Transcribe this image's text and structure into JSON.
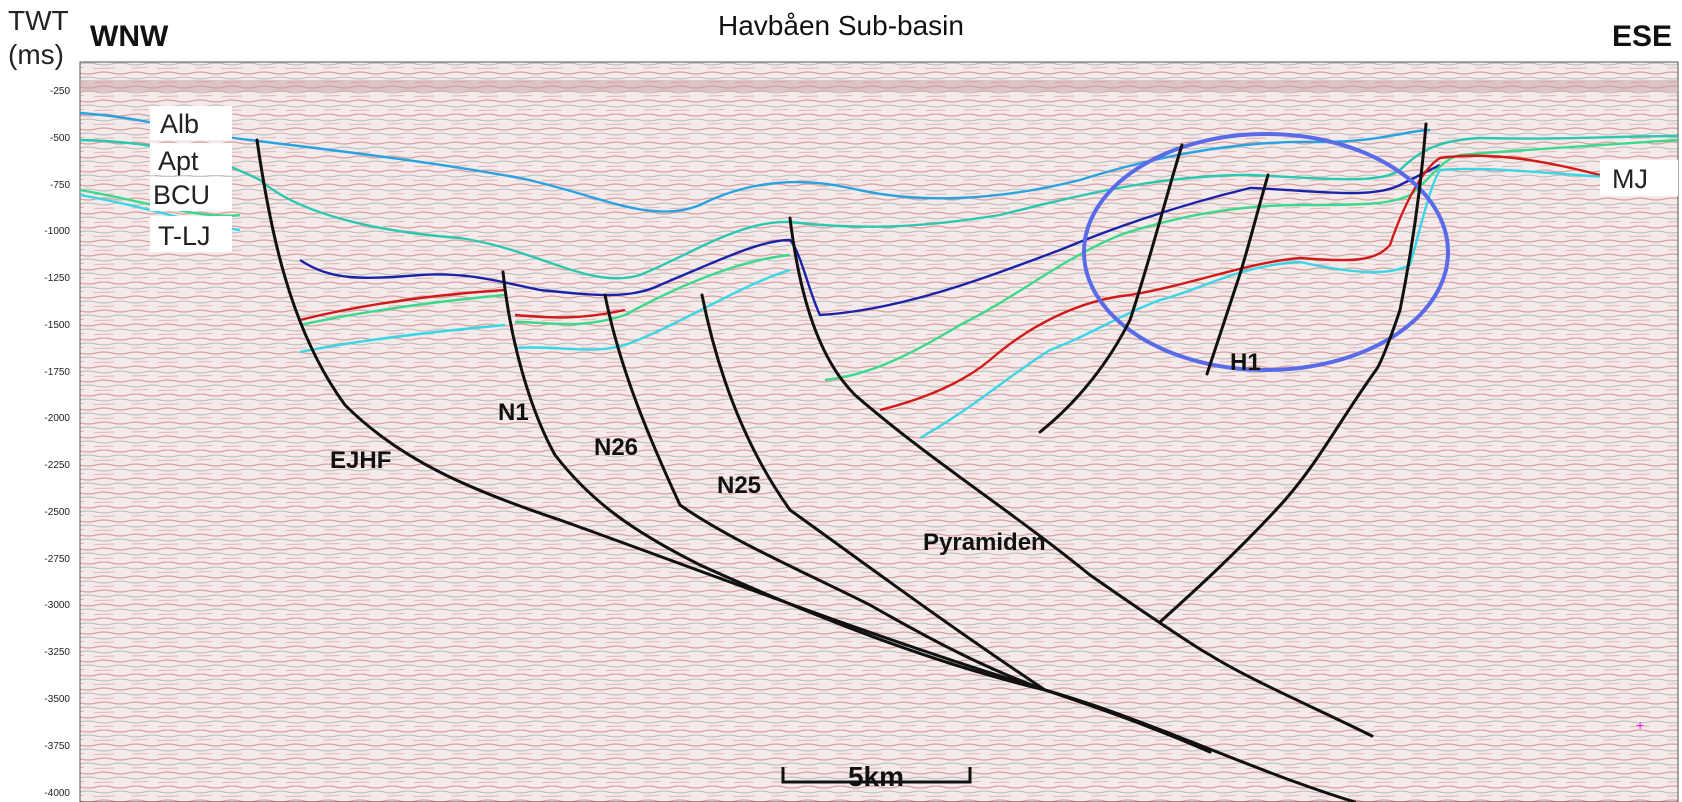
{
  "header": {
    "yaxis_label_line1": "TWT",
    "yaxis_label_line2": "(ms)",
    "title": "Havbåen Sub-basin",
    "dir_left": "WNW",
    "dir_right": "ESE"
  },
  "yaxis": {
    "ticks": [
      "-250",
      "-500",
      "-750",
      "-1000",
      "-1250",
      "-1500",
      "-1750",
      "-2000",
      "-2250",
      "-2500",
      "-2750",
      "-3000",
      "-3250",
      "-3500",
      "-3750",
      "-4000"
    ]
  },
  "horizons": {
    "labels": [
      "Alb",
      "Apt",
      "BCU",
      "T-LJ",
      "MJ"
    ],
    "colors": {
      "Alb": "#29a3e0",
      "Apt": "#2cc7b0",
      "BCU": "#1a23a8",
      "T-LJ": "#3bd98c",
      "red": "#d11a1a",
      "cyan": "#39d6e6"
    }
  },
  "faults": {
    "labels": [
      "EJHF",
      "N1",
      "N26",
      "N25",
      "Pyramiden",
      "H1"
    ]
  },
  "highlight": {
    "color": "#5a6be8"
  },
  "scale_bar": {
    "label": "5km"
  }
}
